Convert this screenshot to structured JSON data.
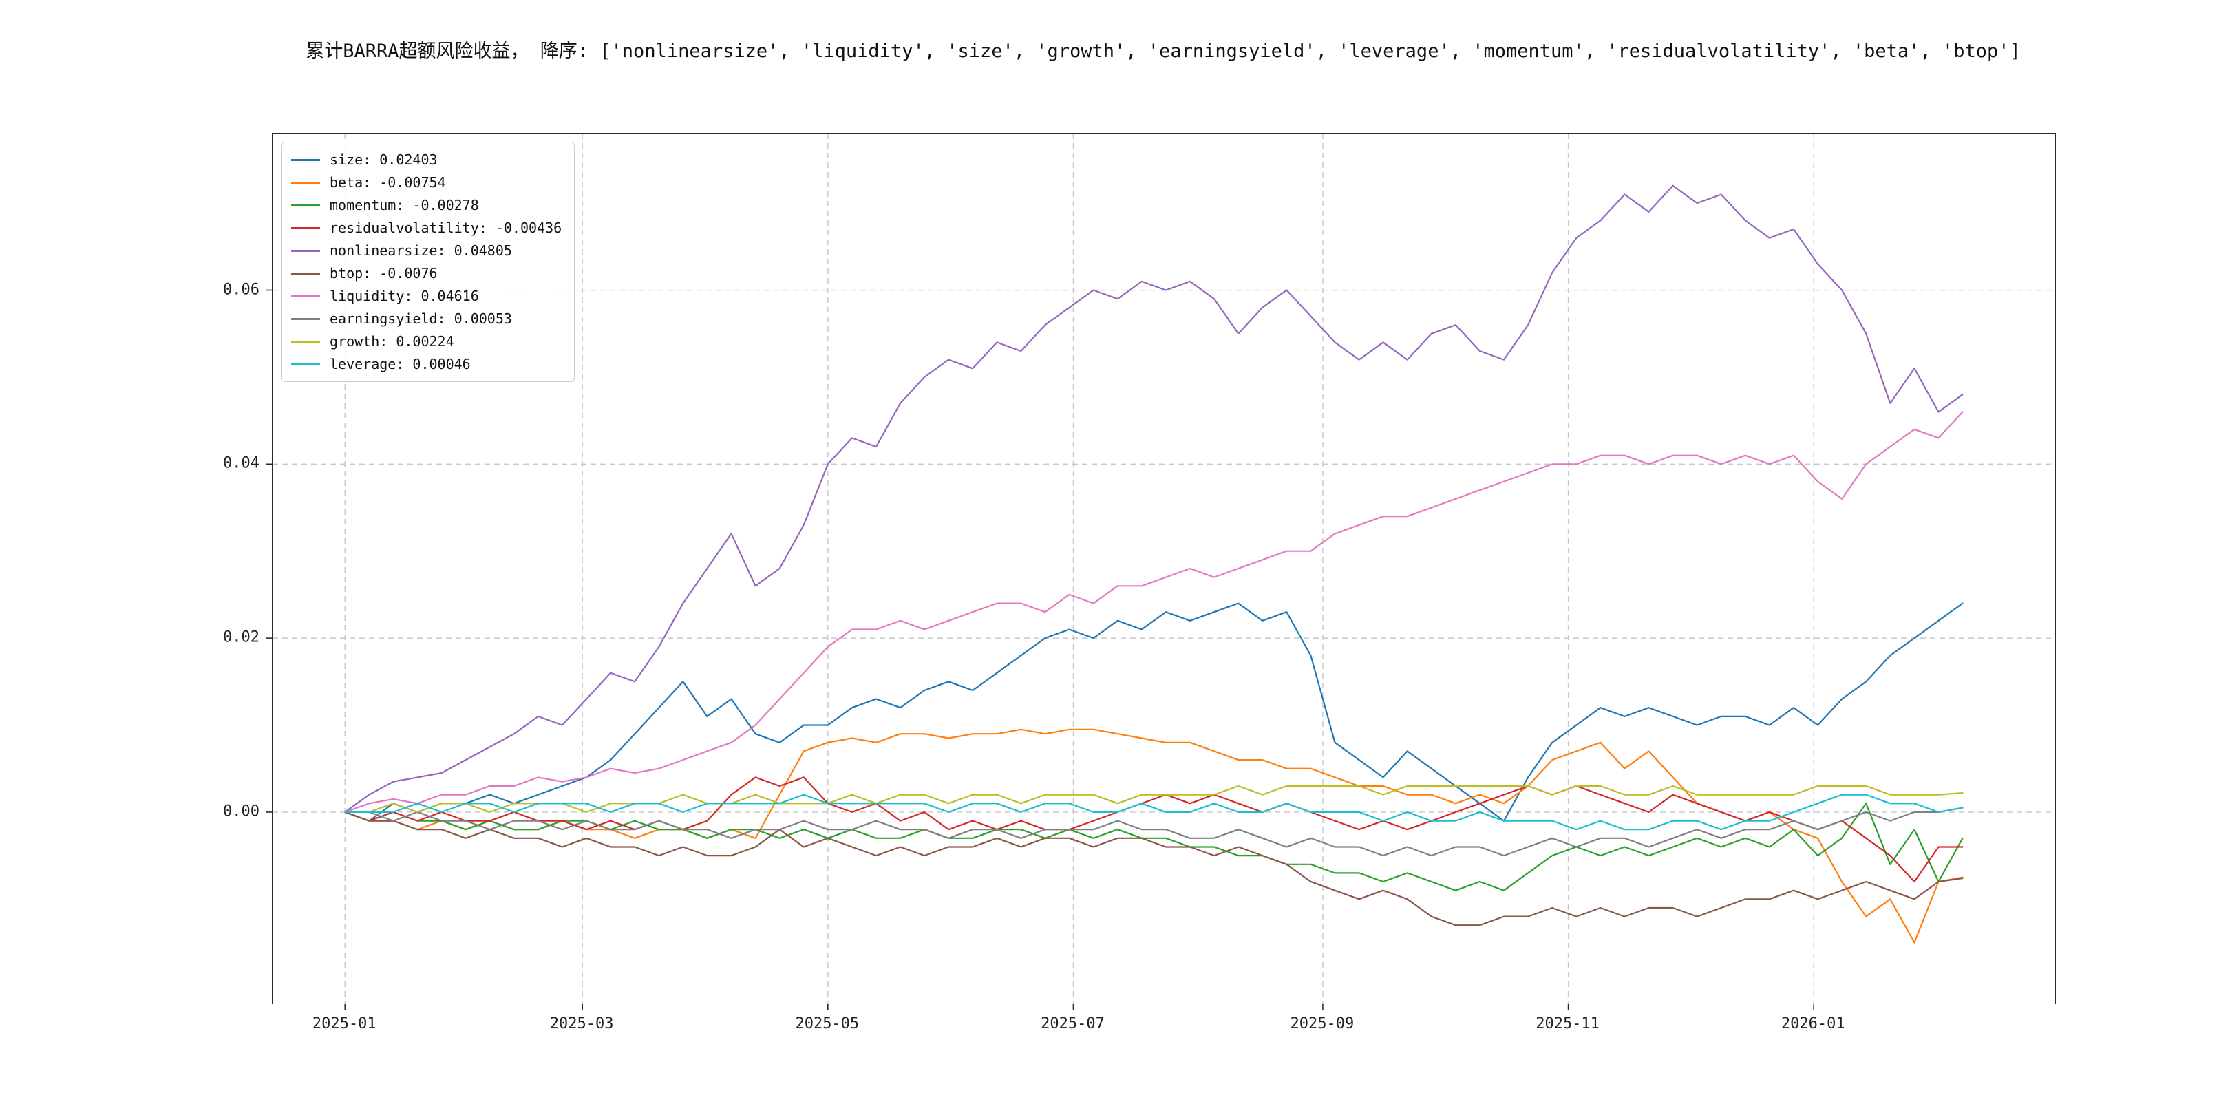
{
  "figure": {
    "background": "#ffffff"
  },
  "chart_data": {
    "type": "line",
    "title": "累计BARRA超额风险收益， 降序: ['nonlinearsize', 'liquidity', 'size', 'growth', 'earningsyield', 'leverage', 'momentum', 'residualvolatility', 'beta', 'btop']",
    "xlabel": "",
    "ylabel": "",
    "x_unit": "days since 2025-01-01",
    "xlim": [
      -18,
      425
    ],
    "ylim": [
      -0.022,
      0.078
    ],
    "grid": "dashed",
    "grid_color": "#c7c7c7",
    "axis_color": "#2b2b2b",
    "legend_position": "upper-left",
    "xticks": [
      {
        "pos": 0,
        "label": "2025-01"
      },
      {
        "pos": 59,
        "label": "2025-03"
      },
      {
        "pos": 120,
        "label": "2025-05"
      },
      {
        "pos": 181,
        "label": "2025-07"
      },
      {
        "pos": 243,
        "label": "2025-09"
      },
      {
        "pos": 304,
        "label": "2025-11"
      },
      {
        "pos": 365,
        "label": "2026-01"
      }
    ],
    "yticks": [
      {
        "pos": 0.0,
        "label": "0.00"
      },
      {
        "pos": 0.02,
        "label": "0.02"
      },
      {
        "pos": 0.04,
        "label": "0.04"
      },
      {
        "pos": 0.06,
        "label": "0.06"
      }
    ],
    "x": [
      0,
      6,
      12,
      18,
      24,
      30,
      36,
      42,
      48,
      54,
      60,
      66,
      72,
      78,
      84,
      90,
      96,
      102,
      108,
      114,
      120,
      126,
      132,
      138,
      144,
      150,
      156,
      162,
      168,
      174,
      180,
      186,
      192,
      198,
      204,
      210,
      216,
      222,
      228,
      234,
      240,
      246,
      252,
      258,
      264,
      270,
      276,
      282,
      288,
      294,
      300,
      306,
      312,
      318,
      324,
      330,
      336,
      342,
      348,
      354,
      360,
      366,
      372,
      378,
      384,
      390,
      396,
      402
    ],
    "series": [
      {
        "name": "size",
        "label": "size: 0.02403",
        "final": 0.02403,
        "color": "#1f77b4",
        "values": [
          0.0,
          -0.001,
          0.001,
          0.0,
          0.001,
          0.001,
          0.002,
          0.001,
          0.002,
          0.003,
          0.004,
          0.006,
          0.009,
          0.012,
          0.015,
          0.011,
          0.013,
          0.009,
          0.008,
          0.01,
          0.01,
          0.012,
          0.013,
          0.012,
          0.014,
          0.015,
          0.014,
          0.016,
          0.018,
          0.02,
          0.021,
          0.02,
          0.022,
          0.021,
          0.023,
          0.022,
          0.023,
          0.024,
          0.022,
          0.023,
          0.018,
          0.008,
          0.006,
          0.004,
          0.007,
          0.005,
          0.003,
          0.001,
          -0.001,
          0.004,
          0.008,
          0.01,
          0.012,
          0.011,
          0.012,
          0.011,
          0.01,
          0.011,
          0.011,
          0.01,
          0.012,
          0.01,
          0.013,
          0.015,
          0.018,
          0.02,
          0.022,
          0.024
        ]
      },
      {
        "name": "beta",
        "label": "beta: -0.00754",
        "final": -0.00754,
        "color": "#ff7f0e",
        "values": [
          0.0,
          -0.001,
          -0.001,
          -0.002,
          -0.001,
          -0.002,
          -0.001,
          -0.002,
          -0.002,
          -0.001,
          -0.002,
          -0.002,
          -0.003,
          -0.002,
          -0.002,
          -0.003,
          -0.002,
          -0.003,
          0.002,
          0.007,
          0.008,
          0.0085,
          0.008,
          0.009,
          0.009,
          0.0085,
          0.009,
          0.009,
          0.0095,
          0.009,
          0.0095,
          0.0095,
          0.009,
          0.0085,
          0.008,
          0.008,
          0.007,
          0.006,
          0.006,
          0.005,
          0.005,
          0.004,
          0.003,
          0.003,
          0.002,
          0.002,
          0.001,
          0.002,
          0.001,
          0.003,
          0.006,
          0.007,
          0.008,
          0.005,
          0.007,
          0.004,
          0.001,
          0.0,
          -0.001,
          0.0,
          -0.002,
          -0.003,
          -0.008,
          -0.012,
          -0.01,
          -0.015,
          -0.008,
          -0.0075
        ]
      },
      {
        "name": "momentum",
        "label": "momentum: -0.00278",
        "final": -0.00278,
        "color": "#2ca02c",
        "values": [
          0.0,
          -0.001,
          0.0,
          -0.001,
          -0.001,
          -0.002,
          -0.001,
          -0.002,
          -0.002,
          -0.001,
          -0.001,
          -0.002,
          -0.001,
          -0.002,
          -0.002,
          -0.003,
          -0.002,
          -0.002,
          -0.003,
          -0.002,
          -0.003,
          -0.002,
          -0.003,
          -0.003,
          -0.002,
          -0.003,
          -0.003,
          -0.002,
          -0.002,
          -0.003,
          -0.002,
          -0.003,
          -0.002,
          -0.003,
          -0.003,
          -0.004,
          -0.004,
          -0.005,
          -0.005,
          -0.006,
          -0.006,
          -0.007,
          -0.007,
          -0.008,
          -0.007,
          -0.008,
          -0.009,
          -0.008,
          -0.009,
          -0.007,
          -0.005,
          -0.004,
          -0.005,
          -0.004,
          -0.005,
          -0.004,
          -0.003,
          -0.004,
          -0.003,
          -0.004,
          -0.002,
          -0.005,
          -0.003,
          0.001,
          -0.006,
          -0.002,
          -0.008,
          -0.003
        ]
      },
      {
        "name": "residualvolatility",
        "label": "residualvolatility: -0.00436",
        "final": -0.00436,
        "color": "#d62728",
        "values": [
          0.0,
          -0.001,
          0.0,
          -0.001,
          0.0,
          -0.001,
          -0.001,
          0.0,
          -0.001,
          -0.001,
          -0.002,
          -0.001,
          -0.002,
          -0.001,
          -0.002,
          -0.001,
          0.002,
          0.004,
          0.003,
          0.004,
          0.001,
          0.0,
          0.001,
          -0.001,
          0.0,
          -0.002,
          -0.001,
          -0.002,
          -0.001,
          -0.002,
          -0.002,
          -0.001,
          0.0,
          0.001,
          0.002,
          0.001,
          0.002,
          0.001,
          0.0,
          0.001,
          0.0,
          -0.001,
          -0.002,
          -0.001,
          -0.002,
          -0.001,
          0.0,
          0.001,
          0.002,
          0.003,
          0.002,
          0.003,
          0.002,
          0.001,
          0.0,
          0.002,
          0.001,
          0.0,
          -0.001,
          0.0,
          -0.001,
          -0.002,
          -0.001,
          -0.003,
          -0.005,
          -0.008,
          -0.004,
          -0.004
        ]
      },
      {
        "name": "nonlinearsize",
        "label": "nonlinearsize: 0.04805",
        "final": 0.04805,
        "color": "#9467bd",
        "values": [
          0.0,
          0.002,
          0.0035,
          0.004,
          0.0045,
          0.006,
          0.0075,
          0.009,
          0.011,
          0.01,
          0.013,
          0.016,
          0.015,
          0.019,
          0.024,
          0.028,
          0.032,
          0.026,
          0.028,
          0.033,
          0.04,
          0.043,
          0.042,
          0.047,
          0.05,
          0.052,
          0.051,
          0.054,
          0.053,
          0.056,
          0.058,
          0.06,
          0.059,
          0.061,
          0.06,
          0.061,
          0.059,
          0.055,
          0.058,
          0.06,
          0.057,
          0.054,
          0.052,
          0.054,
          0.052,
          0.055,
          0.056,
          0.053,
          0.052,
          0.056,
          0.062,
          0.066,
          0.068,
          0.071,
          0.069,
          0.072,
          0.07,
          0.071,
          0.068,
          0.066,
          0.067,
          0.063,
          0.06,
          0.055,
          0.047,
          0.051,
          0.046,
          0.048
        ]
      },
      {
        "name": "btop",
        "label": "btop: -0.0076",
        "final": -0.0076,
        "color": "#8c564b",
        "values": [
          0.0,
          -0.001,
          -0.001,
          -0.002,
          -0.002,
          -0.003,
          -0.002,
          -0.003,
          -0.003,
          -0.004,
          -0.003,
          -0.004,
          -0.004,
          -0.005,
          -0.004,
          -0.005,
          -0.005,
          -0.004,
          -0.002,
          -0.004,
          -0.003,
          -0.004,
          -0.005,
          -0.004,
          -0.005,
          -0.004,
          -0.004,
          -0.003,
          -0.004,
          -0.003,
          -0.003,
          -0.004,
          -0.003,
          -0.003,
          -0.004,
          -0.004,
          -0.005,
          -0.004,
          -0.005,
          -0.006,
          -0.008,
          -0.009,
          -0.01,
          -0.009,
          -0.01,
          -0.012,
          -0.013,
          -0.013,
          -0.012,
          -0.012,
          -0.011,
          -0.012,
          -0.011,
          -0.012,
          -0.011,
          -0.011,
          -0.012,
          -0.011,
          -0.01,
          -0.01,
          -0.009,
          -0.01,
          -0.009,
          -0.008,
          -0.009,
          -0.01,
          -0.008,
          -0.0076
        ]
      },
      {
        "name": "liquidity",
        "label": "liquidity: 0.04616",
        "final": 0.04616,
        "color": "#e377c2",
        "values": [
          0.0,
          0.001,
          0.0015,
          0.001,
          0.002,
          0.002,
          0.003,
          0.003,
          0.004,
          0.0035,
          0.004,
          0.005,
          0.0045,
          0.005,
          0.006,
          0.007,
          0.008,
          0.01,
          0.013,
          0.016,
          0.019,
          0.021,
          0.021,
          0.022,
          0.021,
          0.022,
          0.023,
          0.024,
          0.024,
          0.023,
          0.025,
          0.024,
          0.026,
          0.026,
          0.027,
          0.028,
          0.027,
          0.028,
          0.029,
          0.03,
          0.03,
          0.032,
          0.033,
          0.034,
          0.034,
          0.035,
          0.036,
          0.037,
          0.038,
          0.039,
          0.04,
          0.04,
          0.041,
          0.041,
          0.04,
          0.041,
          0.041,
          0.04,
          0.041,
          0.04,
          0.041,
          0.038,
          0.036,
          0.04,
          0.042,
          0.044,
          0.043,
          0.046
        ]
      },
      {
        "name": "earningsyield",
        "label": "earningsyield: 0.00053",
        "final": 0.00053,
        "color": "#7f7f7f",
        "values": [
          0.0,
          0.0,
          -0.001,
          0.0,
          -0.001,
          -0.001,
          -0.002,
          -0.001,
          -0.001,
          -0.002,
          -0.001,
          -0.002,
          -0.002,
          -0.001,
          -0.002,
          -0.002,
          -0.003,
          -0.002,
          -0.002,
          -0.001,
          -0.002,
          -0.002,
          -0.001,
          -0.002,
          -0.002,
          -0.003,
          -0.002,
          -0.002,
          -0.003,
          -0.002,
          -0.002,
          -0.002,
          -0.001,
          -0.002,
          -0.002,
          -0.003,
          -0.003,
          -0.002,
          -0.003,
          -0.004,
          -0.003,
          -0.004,
          -0.004,
          -0.005,
          -0.004,
          -0.005,
          -0.004,
          -0.004,
          -0.005,
          -0.004,
          -0.003,
          -0.004,
          -0.003,
          -0.003,
          -0.004,
          -0.003,
          -0.002,
          -0.003,
          -0.002,
          -0.002,
          -0.001,
          -0.002,
          -0.001,
          0.0,
          -0.001,
          0.0,
          0.0,
          0.0005
        ]
      },
      {
        "name": "growth",
        "label": "growth: 0.00224",
        "final": 0.00224,
        "color": "#bcbd22",
        "values": [
          0.0,
          0.0,
          0.001,
          0.0,
          0.001,
          0.001,
          0.0,
          0.001,
          0.001,
          0.001,
          0.0,
          0.001,
          0.001,
          0.001,
          0.002,
          0.001,
          0.001,
          0.002,
          0.001,
          0.001,
          0.001,
          0.002,
          0.001,
          0.002,
          0.002,
          0.001,
          0.002,
          0.002,
          0.001,
          0.002,
          0.002,
          0.002,
          0.001,
          0.002,
          0.002,
          0.002,
          0.002,
          0.003,
          0.002,
          0.003,
          0.003,
          0.003,
          0.003,
          0.002,
          0.003,
          0.003,
          0.003,
          0.003,
          0.003,
          0.003,
          0.002,
          0.003,
          0.003,
          0.002,
          0.002,
          0.003,
          0.002,
          0.002,
          0.002,
          0.002,
          0.002,
          0.003,
          0.003,
          0.003,
          0.002,
          0.002,
          0.002,
          0.0022
        ]
      },
      {
        "name": "leverage",
        "label": "leverage: 0.00046",
        "final": 0.00046,
        "color": "#17becf",
        "values": [
          0.0,
          0.0,
          0.0,
          0.001,
          0.0,
          0.001,
          0.001,
          0.0,
          0.001,
          0.001,
          0.001,
          0.0,
          0.001,
          0.001,
          0.0,
          0.001,
          0.001,
          0.001,
          0.001,
          0.002,
          0.001,
          0.001,
          0.001,
          0.001,
          0.001,
          0.0,
          0.001,
          0.001,
          0.0,
          0.001,
          0.001,
          0.0,
          0.0,
          0.001,
          0.0,
          0.0,
          0.001,
          0.0,
          0.0,
          0.001,
          0.0,
          0.0,
          0.0,
          -0.001,
          0.0,
          -0.001,
          -0.001,
          0.0,
          -0.001,
          -0.001,
          -0.001,
          -0.002,
          -0.001,
          -0.002,
          -0.002,
          -0.001,
          -0.001,
          -0.002,
          -0.001,
          -0.001,
          0.0,
          0.001,
          0.002,
          0.002,
          0.001,
          0.001,
          0.0,
          0.0005
        ]
      }
    ]
  }
}
